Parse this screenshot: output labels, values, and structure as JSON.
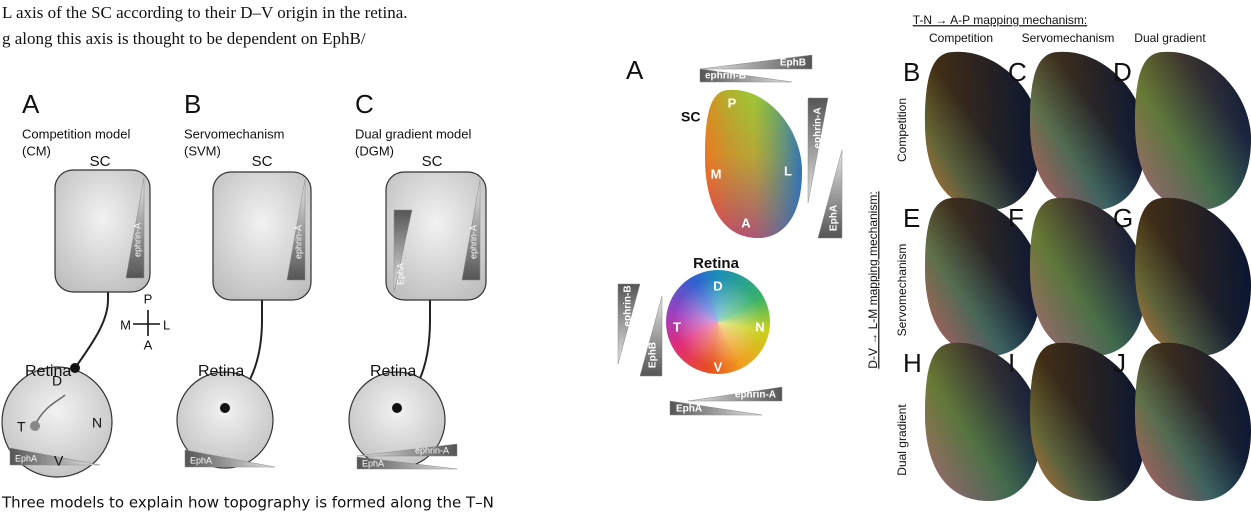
{
  "text_fragment": {
    "line_1": "L axis of the SC according to their D–V origin in the retina.",
    "line_2": "g along this axis is thought to be dependent on EphB/",
    "caption": "Three models to explain how topography is formed along the T–N"
  },
  "models": {
    "panels": [
      {
        "letter": "A",
        "name": "Competition model",
        "abbr": "(CM)",
        "sc": "SC",
        "sc_gradients": [
          "ephrin-A"
        ],
        "retina": "Retina",
        "retina_gradients": [
          "EphA"
        ]
      },
      {
        "letter": "B",
        "name": "Servomechanism",
        "abbr": "(SVM)",
        "sc": "SC",
        "sc_gradients": [
          "ephrin-A"
        ],
        "retina": "Retina",
        "retina_gradients": [
          "EphA"
        ]
      },
      {
        "letter": "C",
        "name": "Dual gradient model",
        "abbr": "(DGM)",
        "sc": "SC",
        "sc_gradients": [
          "ephrin-A",
          "EphA"
        ],
        "retina": "Retina",
        "retina_gradients": [
          "ephrin-A",
          "EphA"
        ]
      }
    ],
    "compass": {
      "p": "P",
      "m": "M",
      "l": "L",
      "a": "A"
    },
    "retina_axes": {
      "d": "D",
      "t": "T",
      "n": "N",
      "v": "V"
    }
  },
  "color_map": {
    "letter": "A",
    "top_gradients": [
      "EphB",
      "ephrin-B"
    ],
    "sc": "SC",
    "sc_axes": {
      "p": "P",
      "m": "M",
      "l": "L",
      "a": "A"
    },
    "side_gradients": [
      "ephrin-A",
      "EphA"
    ],
    "retina": "Retina",
    "retina_axes": {
      "d": "D",
      "t": "T",
      "n": "N",
      "v": "V"
    },
    "left_gradients": [
      "ephrin-B",
      "EphB"
    ],
    "bottom_gradients": [
      "ephrin-A",
      "EphA"
    ]
  },
  "simulations": {
    "column_heading": "T-N → A-P mapping mechanism:",
    "columns": [
      "Competition",
      "Servomechanism",
      "Dual gradient"
    ],
    "row_heading": "D-V → L-M mapping mechanism:",
    "rows": [
      "Competition",
      "Servomechanism",
      "Dual gradient"
    ],
    "panel_letters": [
      "B",
      "C",
      "D",
      "E",
      "F",
      "G",
      "H",
      "I",
      "J"
    ]
  }
}
